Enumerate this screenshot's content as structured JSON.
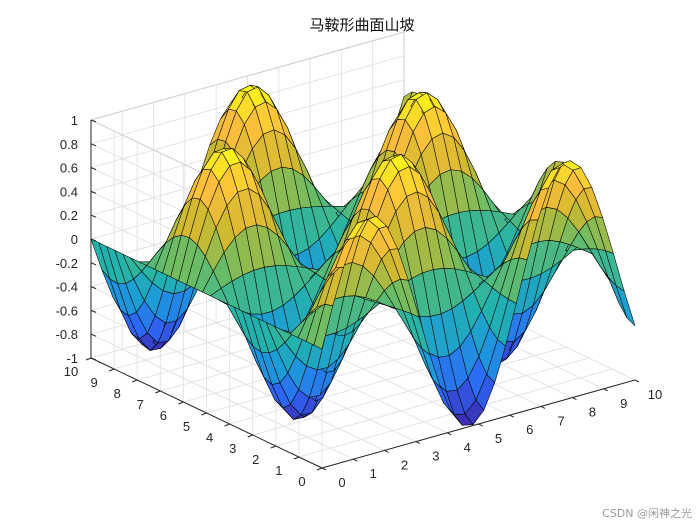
{
  "chart_data": {
    "type": "surface",
    "title": "马鞍形曲面山坡",
    "function": "sin(x)*cos(y)",
    "x": [
      0,
      0.3448,
      0.6897,
      1.0345,
      1.3793,
      1.7241,
      2.069,
      2.4138,
      2.7586,
      3.1034,
      3.4483,
      3.7931,
      4.1379,
      4.4828,
      4.8276,
      5.1724,
      5.5172,
      5.8621,
      6.2069,
      6.5517,
      6.8966,
      7.2414,
      7.5862,
      7.931,
      8.2759,
      8.6207,
      8.9655,
      9.3103,
      9.6552,
      10
    ],
    "y": [
      0,
      0.3448,
      0.6897,
      1.0345,
      1.3793,
      1.7241,
      2.069,
      2.4138,
      2.7586,
      3.1034,
      3.4483,
      3.7931,
      4.1379,
      4.4828,
      4.8276,
      5.1724,
      5.5172,
      5.8621,
      6.2069,
      6.5517,
      6.8966,
      7.2414,
      7.5862,
      7.931,
      8.2759,
      8.6207,
      8.9655,
      9.3103,
      9.6552,
      10
    ],
    "xlim": [
      0,
      10
    ],
    "ylim": [
      0,
      10
    ],
    "zlim": [
      -1,
      1
    ],
    "xticks": [
      "0",
      "1",
      "2",
      "3",
      "4",
      "5",
      "6",
      "7",
      "8",
      "9",
      "10"
    ],
    "yticks": [
      "0",
      "1",
      "2",
      "3",
      "4",
      "5",
      "6",
      "7",
      "8",
      "9",
      "10"
    ],
    "zticks": [
      "-1",
      "-0.8",
      "-0.6",
      "-0.4",
      "-0.2",
      "0",
      "0.2",
      "0.4",
      "0.6",
      "0.8",
      "1"
    ],
    "grid": true,
    "colormap": "parula",
    "colormap_stops": [
      "#3e26a8",
      "#2d67f6",
      "#1d9bd9",
      "#23b3aa",
      "#6bbc65",
      "#cdb92f",
      "#fcbe3c",
      "#f9fb15"
    ],
    "edge_color": "#000000",
    "view": "3d-isometric"
  },
  "watermark": "CSDN @闲神之光"
}
